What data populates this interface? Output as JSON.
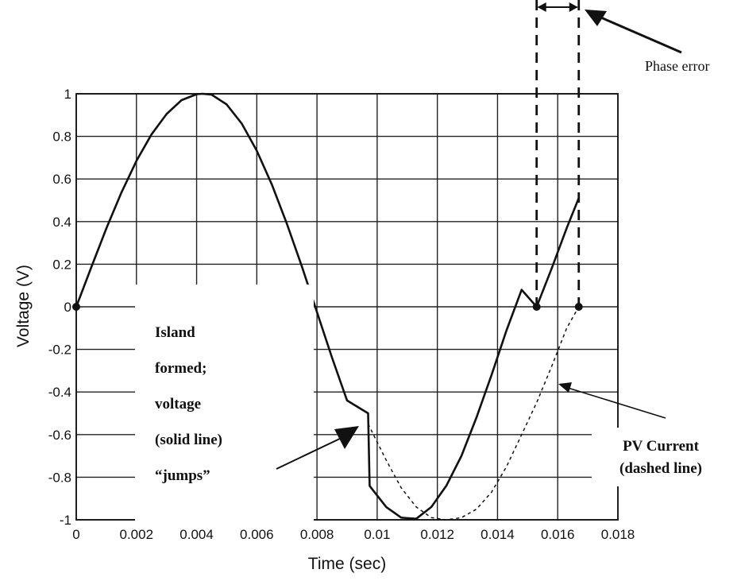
{
  "chart_data": {
    "type": "line",
    "title": "",
    "xlabel": "Time (sec)",
    "ylabel": "Voltage (V)",
    "xlim": [
      0,
      0.018
    ],
    "ylim": [
      -1,
      1
    ],
    "grid": true,
    "x_ticks": [
      {
        "value": 0,
        "label": "0"
      },
      {
        "value": 0.002,
        "label": "0.002"
      },
      {
        "value": 0.004,
        "label": "0.004"
      },
      {
        "value": 0.006,
        "label": "0.006"
      },
      {
        "value": 0.008,
        "label": "0.008"
      },
      {
        "value": 0.01,
        "label": "0.01"
      },
      {
        "value": 0.012,
        "label": "0.012"
      },
      {
        "value": 0.014,
        "label": "0.014"
      },
      {
        "value": 0.016,
        "label": "0.016"
      },
      {
        "value": 0.018,
        "label": "0.018"
      }
    ],
    "y_ticks": [
      {
        "value": 1,
        "label": "1"
      },
      {
        "value": 0.8,
        "label": "0.8"
      },
      {
        "value": 0.6,
        "label": "0.6"
      },
      {
        "value": 0.4,
        "label": "0.4"
      },
      {
        "value": 0.2,
        "label": "0.2"
      },
      {
        "value": 0,
        "label": "0"
      },
      {
        "value": -0.2,
        "label": "-0.2"
      },
      {
        "value": -0.4,
        "label": "-0.4"
      },
      {
        "value": -0.6,
        "label": "-0.6"
      },
      {
        "value": -0.8,
        "label": "-0.8"
      },
      {
        "value": -1,
        "label": "-1"
      }
    ],
    "series": [
      {
        "style": "solid",
        "x": [
          0,
          0.0005,
          0.001,
          0.0015,
          0.002,
          0.0025,
          0.003,
          0.0035,
          0.004,
          0.0042,
          0.0045,
          0.005,
          0.0055,
          0.006,
          0.0065,
          0.007,
          0.0075,
          0.008,
          0.0085,
          0.009,
          0.0097,
          0.0097,
          0.00975,
          0.0098,
          0.0103,
          0.0108,
          0.0113,
          0.0118,
          0.0123,
          0.0128,
          0.0133,
          0.0138,
          0.0143,
          0.0148,
          0.0153,
          0.0158,
          0.0163,
          0.0167
        ],
        "y": [
          0,
          0.185,
          0.368,
          0.536,
          0.685,
          0.809,
          0.905,
          0.97,
          0.998,
          1.0,
          0.996,
          0.95,
          0.86,
          0.733,
          0.574,
          0.39,
          0.188,
          -0.025,
          -0.239,
          -0.44,
          -0.5,
          -0.5,
          -0.84,
          -0.85,
          -0.94,
          -0.99,
          -0.995,
          -0.94,
          -0.84,
          -0.7,
          -0.52,
          -0.32,
          -0.11,
          0.08,
          0.0,
          0.18,
          0.37,
          0.51
        ]
      },
      {
        "style": "dashed",
        "x": [
          0.0097,
          0.0103,
          0.0108,
          0.0113,
          0.0118,
          0.0123,
          0.0128,
          0.0133,
          0.0138,
          0.0143,
          0.0148,
          0.0153,
          0.0158,
          0.0163,
          0.0167
        ],
        "y": [
          -0.55,
          -0.72,
          -0.85,
          -0.94,
          -0.99,
          -1.0,
          -0.99,
          -0.95,
          -0.87,
          -0.75,
          -0.6,
          -0.45,
          -0.28,
          -0.1,
          0.0
        ]
      }
    ],
    "markers": [
      {
        "x": 0,
        "y": 0
      },
      {
        "x": 0.0153,
        "y": 0
      },
      {
        "x": 0.0167,
        "y": 0
      }
    ],
    "annotations": {
      "island_lines": [
        "Island",
        "formed;",
        "voltage",
        "(solid line)",
        "“jumps”"
      ],
      "pv_lines": [
        "PV Current",
        "(dashed line)"
      ],
      "phase_error": "Phase error"
    }
  }
}
